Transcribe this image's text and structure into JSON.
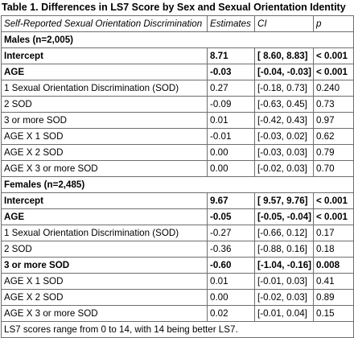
{
  "title": "Table 1. Differences in LS7 Score by Sex and Sexual Orientation Identity",
  "headers": [
    "Self-Reported Sexual Orientation Discrimination",
    "Estimates",
    "CI",
    "p"
  ],
  "groups": [
    {
      "label": "Males (n=2,005)",
      "rows": [
        {
          "term": "Intercept",
          "estimate": "8.71",
          "ci": "[ 8.60, 8.83]",
          "p": "< 0.001",
          "bold": true
        },
        {
          "term": "AGE",
          "estimate": "-0.03",
          "ci": "[-0.04, -0.03]",
          "p": "< 0.001",
          "bold": true
        },
        {
          "term": "1 Sexual Orientation Discrimination (SOD)",
          "estimate": "0.27",
          "ci": "[-0.18, 0.73]",
          "p": "0.240",
          "bold": false
        },
        {
          "term": "2 SOD",
          "estimate": "-0.09",
          "ci": "[-0.63, 0.45]",
          "p": "0.73",
          "bold": false
        },
        {
          "term": "3 or more SOD",
          "estimate": "0.01",
          "ci": "[-0.42, 0.43]",
          "p": "0.97",
          "bold": false
        },
        {
          "term": "AGE X 1 SOD",
          "estimate": "-0.01",
          "ci": "[-0.03, 0.02]",
          "p": "0.62",
          "bold": false
        },
        {
          "term": "AGE X 2 SOD",
          "estimate": "0.00",
          "ci": "[-0.03, 0.03]",
          "p": "0.79",
          "bold": false
        },
        {
          "term": "AGE X 3 or more SOD",
          "estimate": "0.00",
          "ci": "[-0.02, 0.03]",
          "p": "0.70",
          "bold": false
        }
      ]
    },
    {
      "label": "Females (n=2,485)",
      "rows": [
        {
          "term": "Intercept",
          "estimate": "9.67",
          "ci": "[ 9.57, 9.76]",
          "p": "< 0.001",
          "bold": true
        },
        {
          "term": "AGE",
          "estimate": "-0.05",
          "ci": "[-0.05, -0.04]",
          "p": "< 0.001",
          "bold": true
        },
        {
          "term": "1 Sexual Orientation Discrimination (SOD)",
          "estimate": "-0.27",
          "ci": "[-0.66, 0.12]",
          "p": "0.17",
          "bold": false
        },
        {
          "term": "2 SOD",
          "estimate": "-0.36",
          "ci": "[-0.88, 0.16]",
          "p": "0.18",
          "bold": false
        },
        {
          "term": "3 or more SOD",
          "estimate": "-0.60",
          "ci": "[-1.04, -0.16]",
          "p": "0.008",
          "bold": true
        },
        {
          "term": "AGE X 1 SOD",
          "estimate": "0.01",
          "ci": "[-0.01, 0.03]",
          "p": "0.41",
          "bold": false
        },
        {
          "term": "AGE X 2 SOD",
          "estimate": "0.00",
          "ci": "[-0.02, 0.03]",
          "p": "0.89",
          "bold": false
        },
        {
          "term": "AGE X 3 or more SOD",
          "estimate": "0.02",
          "ci": "[-0.01, 0.04]",
          "p": "0.15",
          "bold": false
        }
      ]
    }
  ],
  "footnote": "LS7 scores range from 0 to 14, with 14 being better LS7."
}
